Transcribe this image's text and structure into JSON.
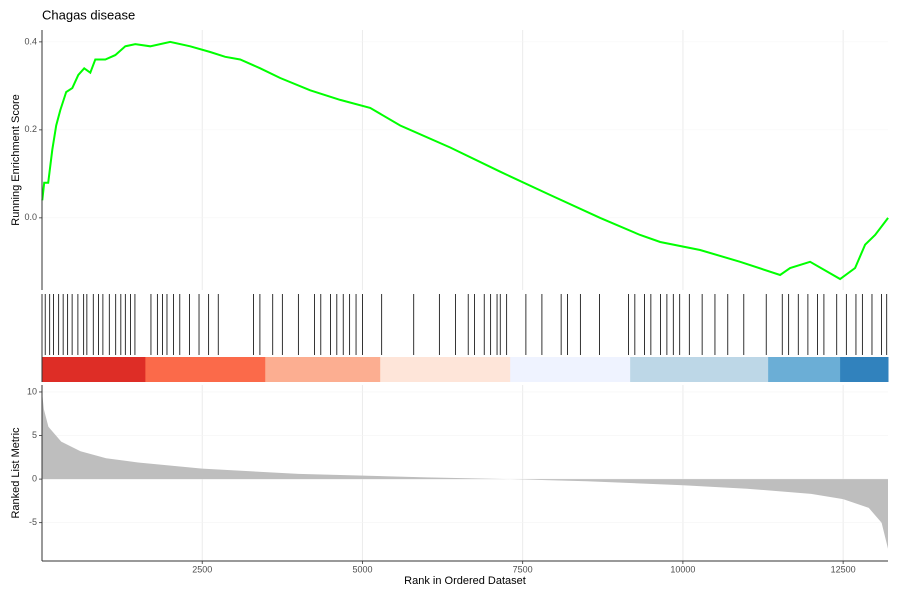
{
  "chart_data": [
    {
      "type": "line",
      "title": "Chagas disease",
      "ylabel": "Running Enrichment Score",
      "color": "#00ff00",
      "x": [
        4,
        35,
        97,
        160,
        222,
        285,
        378,
        472,
        566,
        659,
        753,
        831,
        987,
        1143,
        1299,
        1455,
        1689,
        2001,
        2313,
        2625,
        2859,
        3093,
        3405,
        3717,
        4185,
        4653,
        5121,
        5589,
        6369,
        7149,
        7929,
        8709,
        9333,
        9645,
        10269,
        10893,
        11517,
        11673,
        11985,
        12453,
        12687,
        12843,
        12999,
        13202
      ],
      "values": [
        0.04,
        0.08,
        0.08,
        0.155,
        0.21,
        0.245,
        0.286,
        0.295,
        0.325,
        0.34,
        0.33,
        0.36,
        0.36,
        0.37,
        0.39,
        0.395,
        0.39,
        0.4,
        0.39,
        0.377,
        0.366,
        0.36,
        0.34,
        0.318,
        0.29,
        0.268,
        0.25,
        0.21,
        0.16,
        0.105,
        0.052,
        0.0,
        -0.039,
        -0.055,
        -0.073,
        -0.1,
        -0.13,
        -0.114,
        -0.1,
        -0.139,
        -0.114,
        -0.061,
        -0.039,
        0.0
      ],
      "xlim": [
        0,
        13200
      ],
      "ylim": [
        -0.164,
        0.427
      ],
      "yticks": [
        {
          "value": 0,
          "label": "0.0"
        },
        0.2,
        0.4
      ],
      "grid": true
    },
    {
      "type": "rug",
      "color": "#000000",
      "xlim": [
        0,
        13200
      ],
      "x": [
        50,
        120,
        180,
        260,
        330,
        400,
        470,
        560,
        650,
        700,
        800,
        880,
        950,
        1050,
        1150,
        1230,
        1300,
        1380,
        1450,
        1700,
        1800,
        1880,
        1950,
        2050,
        2150,
        2300,
        2450,
        2600,
        2750,
        3300,
        3400,
        3600,
        3750,
        4000,
        4250,
        4350,
        4500,
        4600,
        4700,
        4800,
        4900,
        5000,
        5300,
        5800,
        6200,
        6450,
        6650,
        6750,
        6900,
        7000,
        7100,
        7150,
        7250,
        7550,
        7800,
        8100,
        8200,
        8400,
        8700,
        9150,
        9250,
        9400,
        9500,
        9650,
        9750,
        9850,
        9950,
        10100,
        10300,
        10500,
        10700,
        10950,
        11300,
        11550,
        11650,
        11800,
        11950,
        12100,
        12200,
        12400,
        12550,
        12700,
        12800,
        12950,
        13100,
        13180
      ],
      "bands": [
        {
          "start": 0,
          "end": 1613,
          "color": "#de2d26"
        },
        {
          "start": 1613,
          "end": 3483,
          "color": "#fb6a4a"
        },
        {
          "start": 3483,
          "end": 5277,
          "color": "#fcae91"
        },
        {
          "start": 5277,
          "end": 7305,
          "color": "#fee5d9"
        },
        {
          "start": 7305,
          "end": 9177,
          "color": "#eff3ff"
        },
        {
          "start": 9177,
          "end": 11330,
          "color": "#bdd7e7"
        },
        {
          "start": 11330,
          "end": 12453,
          "color": "#6baed6"
        },
        {
          "start": 12453,
          "end": 13200,
          "color": "#3182bd"
        }
      ]
    },
    {
      "type": "area",
      "ylabel": "Ranked List Metric",
      "xlabel": "Rank in Ordered Dataset",
      "color": "#bebebe",
      "x": [
        0,
        30,
        100,
        300,
        600,
        1000,
        1500,
        2500,
        4000,
        6000,
        7300,
        8500,
        10000,
        11000,
        12000,
        12500,
        12900,
        13100,
        13200
      ],
      "values": [
        10,
        8,
        6,
        4.3,
        3.2,
        2.4,
        1.9,
        1.2,
        0.6,
        0.2,
        0,
        -0.25,
        -0.7,
        -1.1,
        -1.7,
        -2.3,
        -3.3,
        -5,
        -8
      ],
      "xlim": [
        0,
        13200
      ],
      "ylim": [
        -9.4,
        10.8
      ],
      "xticks": [
        2500,
        5000,
        7500,
        10000,
        12500
      ],
      "yticks": [
        -5,
        0,
        5,
        10
      ],
      "grid": true
    }
  ]
}
